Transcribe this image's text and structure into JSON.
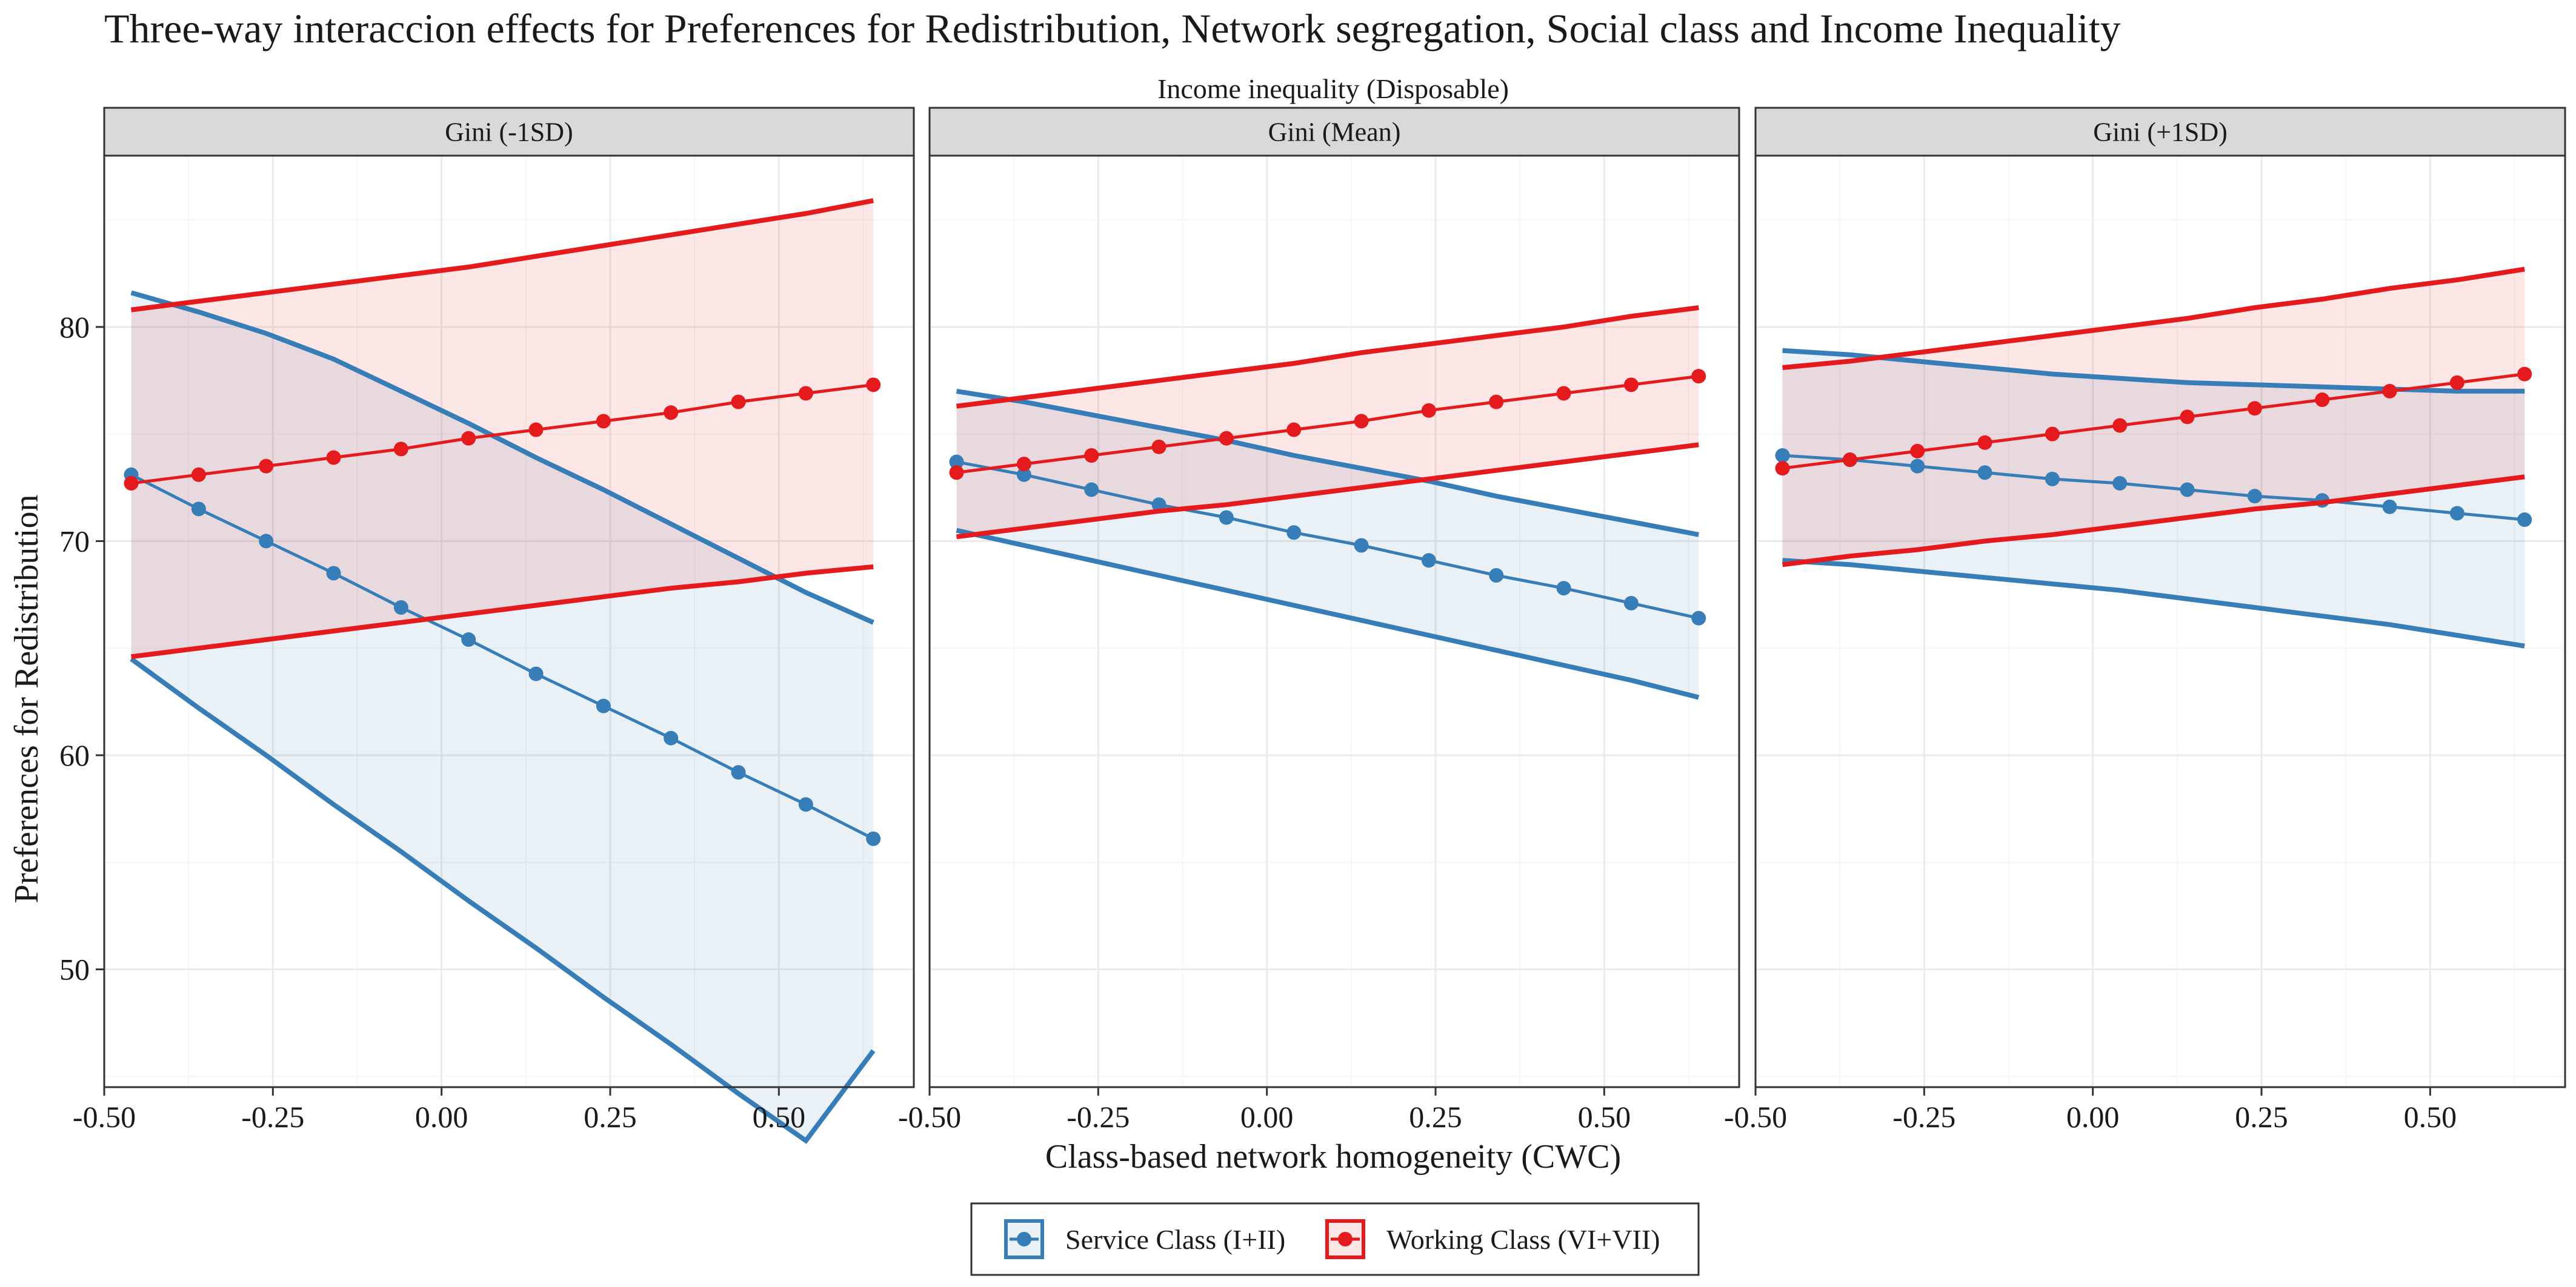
{
  "chart_data": {
    "type": "line",
    "title": "Three-way interaccion effects for Preferences for Redistribution, Network segregation, Social class and Income Inequality",
    "facet_title": "Income inequality (Disposable)",
    "xlabel": "Class-based network homogeneity (CWC)",
    "ylabel": "Preferences for Redistribution",
    "xlim": [
      -0.5,
      0.7
    ],
    "ylim": [
      44.5,
      88
    ],
    "x_ticks": [
      -0.5,
      -0.25,
      0.0,
      0.25,
      0.5
    ],
    "x_tick_labels": [
      "-0.50",
      "-0.25",
      "0.00",
      "0.25",
      "0.50"
    ],
    "y_ticks": [
      50,
      60,
      70,
      80
    ],
    "y_tick_labels": [
      "50",
      "60",
      "70",
      "80"
    ],
    "grid": true,
    "legend_position": "bottom",
    "series_colors": {
      "Service Class (I+II)": "#377EB8",
      "Working Class (VI+VII)": "#E41A1C"
    },
    "legend": [
      {
        "name": "Service Class (I+II)",
        "color": "#377EB8"
      },
      {
        "name": "Working Class (VI+VII)",
        "color": "#E41A1C"
      }
    ],
    "panels": [
      {
        "strip": "Gini (-1SD)",
        "series": [
          {
            "name": "Service Class (I+II)",
            "x": [
              -0.46,
              -0.36,
              -0.26,
              -0.16,
              -0.06,
              0.04,
              0.14,
              0.24,
              0.34,
              0.44,
              0.54,
              0.64
            ],
            "y": [
              73.1,
              71.5,
              70.0,
              68.5,
              66.9,
              65.4,
              63.8,
              62.3,
              60.8,
              59.2,
              57.7,
              56.1
            ],
            "lower": [
              64.5,
              62.2,
              60.0,
              57.7,
              55.5,
              53.2,
              51.0,
              48.7,
              46.5,
              44.2,
              42.0,
              46.2
            ],
            "upper": [
              81.6,
              80.7,
              79.7,
              78.5,
              77.0,
              75.5,
              73.9,
              72.4,
              70.8,
              69.2,
              67.6,
              66.2
            ]
          },
          {
            "name": "Working Class (VI+VII)",
            "x": [
              -0.46,
              -0.36,
              -0.26,
              -0.16,
              -0.06,
              0.04,
              0.14,
              0.24,
              0.34,
              0.44,
              0.54,
              0.64
            ],
            "y": [
              72.7,
              73.1,
              73.5,
              73.9,
              74.3,
              74.8,
              75.2,
              75.6,
              76.0,
              76.5,
              76.9,
              77.3
            ],
            "lower": [
              64.6,
              65.0,
              65.4,
              65.8,
              66.2,
              66.6,
              67.0,
              67.4,
              67.8,
              68.1,
              68.5,
              68.8
            ],
            "upper": [
              80.8,
              81.2,
              81.6,
              82.0,
              82.4,
              82.8,
              83.3,
              83.8,
              84.3,
              84.8,
              85.3,
              85.9
            ]
          }
        ]
      },
      {
        "strip": "Gini (Mean)",
        "series": [
          {
            "name": "Service Class (I+II)",
            "x": [
              -0.46,
              -0.36,
              -0.26,
              -0.16,
              -0.06,
              0.04,
              0.14,
              0.24,
              0.34,
              0.44,
              0.54,
              0.64
            ],
            "y": [
              73.7,
              73.1,
              72.4,
              71.7,
              71.1,
              70.4,
              69.8,
              69.1,
              68.4,
              67.8,
              67.1,
              66.4
            ],
            "lower": [
              70.5,
              69.8,
              69.1,
              68.4,
              67.7,
              67.0,
              66.3,
              65.6,
              64.9,
              64.2,
              63.5,
              62.7
            ],
            "upper": [
              77.0,
              76.5,
              75.9,
              75.3,
              74.7,
              74.0,
              73.4,
              72.8,
              72.1,
              71.5,
              70.9,
              70.3
            ]
          },
          {
            "name": "Working Class (VI+VII)",
            "x": [
              -0.46,
              -0.36,
              -0.26,
              -0.16,
              -0.06,
              0.04,
              0.14,
              0.24,
              0.34,
              0.44,
              0.54,
              0.64
            ],
            "y": [
              73.2,
              73.6,
              74.0,
              74.4,
              74.8,
              75.2,
              75.6,
              76.1,
              76.5,
              76.9,
              77.3,
              77.7
            ],
            "lower": [
              70.2,
              70.6,
              71.0,
              71.4,
              71.7,
              72.1,
              72.5,
              72.9,
              73.3,
              73.7,
              74.1,
              74.5
            ],
            "upper": [
              76.3,
              76.7,
              77.1,
              77.5,
              77.9,
              78.3,
              78.8,
              79.2,
              79.6,
              80.0,
              80.5,
              80.9
            ]
          }
        ]
      },
      {
        "strip": "Gini (+1SD)",
        "series": [
          {
            "name": "Service Class (I+II)",
            "x": [
              -0.46,
              -0.36,
              -0.26,
              -0.16,
              -0.06,
              0.04,
              0.14,
              0.24,
              0.34,
              0.44,
              0.54,
              0.64
            ],
            "y": [
              74.0,
              73.8,
              73.5,
              73.2,
              72.9,
              72.7,
              72.4,
              72.1,
              71.9,
              71.6,
              71.3,
              71.0
            ],
            "lower": [
              69.1,
              68.9,
              68.6,
              68.3,
              68.0,
              67.7,
              67.3,
              66.9,
              66.5,
              66.1,
              65.6,
              65.1
            ],
            "upper": [
              78.9,
              78.7,
              78.4,
              78.1,
              77.8,
              77.6,
              77.4,
              77.3,
              77.2,
              77.1,
              77.0,
              77.0
            ]
          },
          {
            "name": "Working Class (VI+VII)",
            "x": [
              -0.46,
              -0.36,
              -0.26,
              -0.16,
              -0.06,
              0.04,
              0.14,
              0.24,
              0.34,
              0.44,
              0.54,
              0.64
            ],
            "y": [
              73.4,
              73.8,
              74.2,
              74.6,
              75.0,
              75.4,
              75.8,
              76.2,
              76.6,
              77.0,
              77.4,
              77.8
            ],
            "lower": [
              68.9,
              69.3,
              69.6,
              70.0,
              70.3,
              70.7,
              71.1,
              71.5,
              71.8,
              72.2,
              72.6,
              73.0
            ],
            "upper": [
              78.1,
              78.4,
              78.8,
              79.2,
              79.6,
              80.0,
              80.4,
              80.9,
              81.3,
              81.8,
              82.2,
              82.7
            ]
          }
        ]
      }
    ]
  }
}
